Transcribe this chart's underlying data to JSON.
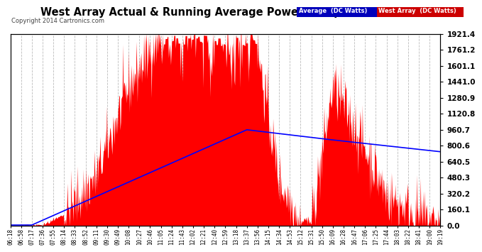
{
  "title": "West Array Actual & Running Average Power Fri Apr 11 19:24",
  "copyright": "Copyright 2014 Cartronics.com",
  "ylabel_right_values": [
    0.0,
    160.1,
    320.2,
    480.3,
    640.5,
    800.6,
    960.7,
    1120.8,
    1280.9,
    1441.0,
    1601.1,
    1761.2,
    1921.4
  ],
  "ymax": 1921.4,
  "ymin": 0.0,
  "bg_color": "#ffffff",
  "plot_bg_color": "#ffffff",
  "grid_color": "#aaaaaa",
  "fill_color": "#ff0000",
  "avg_line_color": "#0000ff",
  "west_array_label": "West Array  (DC Watts)",
  "avg_label": "Average  (DC Watts)",
  "legend_avg_bg": "#0000bb",
  "legend_west_bg": "#cc0000",
  "x_tick_labels": [
    "06:18",
    "06:58",
    "07:17",
    "07:36",
    "07:55",
    "08:14",
    "08:33",
    "08:52",
    "09:11",
    "09:30",
    "09:49",
    "10:08",
    "10:27",
    "10:46",
    "11:05",
    "11:24",
    "11:43",
    "12:02",
    "12:21",
    "12:40",
    "12:59",
    "13:18",
    "13:37",
    "13:56",
    "14:15",
    "14:34",
    "14:53",
    "15:12",
    "15:31",
    "15:50",
    "16:09",
    "16:28",
    "16:47",
    "17:06",
    "17:25",
    "17:44",
    "18:03",
    "18:22",
    "18:41",
    "19:00",
    "19:19"
  ]
}
